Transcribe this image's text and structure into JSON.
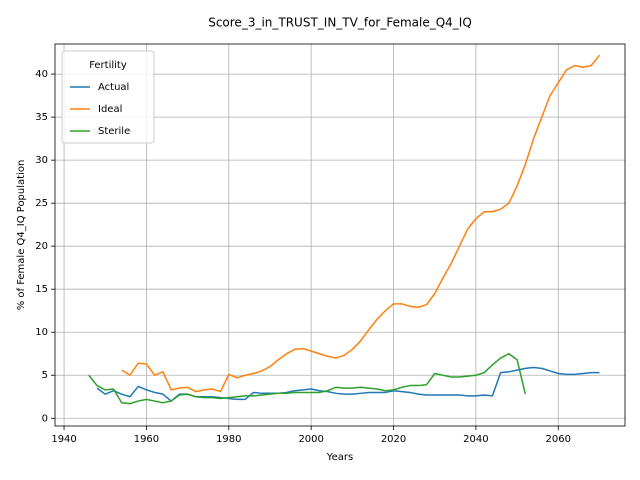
{
  "chart_data": {
    "type": "line",
    "title": "Score_3_in_TRUST_IN_TV_for_Female_Q4_IQ",
    "x_label": "Years",
    "y_label": "% of Female Q4_IQ Population",
    "legend_title": "Fertility",
    "legend": "upper left",
    "grid": true,
    "xlim": [
      1937.8,
      2076.2
    ],
    "ylim": [
      -0.9,
      43.5
    ],
    "xticks": [
      1940,
      1960,
      1980,
      2000,
      2020,
      2040,
      2060
    ],
    "yticks": [
      0,
      5,
      10,
      15,
      20,
      25,
      30,
      35,
      40
    ],
    "x": [
      1946,
      1948,
      1950,
      1952,
      1954,
      1956,
      1958,
      1960,
      1962,
      1964,
      1966,
      1968,
      1970,
      1972,
      1974,
      1976,
      1978,
      1980,
      1982,
      1984,
      1986,
      1988,
      1990,
      1992,
      1994,
      1996,
      1998,
      2000,
      2002,
      2004,
      2006,
      2008,
      2010,
      2012,
      2014,
      2016,
      2018,
      2020,
      2022,
      2024,
      2026,
      2028,
      2030,
      2032,
      2034,
      2036,
      2038,
      2040,
      2042,
      2044,
      2046,
      2048,
      2050,
      2052,
      2054,
      2056,
      2058,
      2060,
      2062,
      2064,
      2066,
      2068,
      2070
    ],
    "series": [
      {
        "name": "Actual",
        "color": "#1f77b4",
        "values": [
          null,
          3.5,
          2.8,
          3.2,
          2.8,
          2.5,
          3.7,
          3.3,
          3.0,
          2.8,
          2.0,
          2.8,
          2.8,
          2.5,
          2.5,
          2.5,
          2.4,
          2.3,
          2.2,
          2.2,
          3.0,
          2.9,
          2.9,
          2.9,
          3.0,
          3.2,
          3.3,
          3.4,
          3.2,
          3.1,
          2.9,
          2.8,
          2.8,
          2.9,
          3.0,
          3.0,
          3.0,
          3.2,
          3.1,
          3.0,
          2.8,
          2.7,
          2.7,
          2.7,
          2.7,
          2.7,
          2.6,
          2.6,
          2.7,
          2.6,
          5.3,
          5.4,
          5.6,
          5.8,
          5.9,
          5.8,
          5.5,
          5.2,
          5.1,
          5.1,
          5.2,
          5.3,
          5.3
        ]
      },
      {
        "name": "Ideal",
        "color": "#ff7f0e",
        "values": [
          null,
          null,
          null,
          null,
          5.6,
          5.0,
          6.4,
          6.3,
          5.0,
          5.4,
          3.3,
          3.5,
          3.6,
          3.1,
          3.3,
          3.4,
          3.1,
          5.1,
          4.7,
          5.0,
          5.2,
          5.5,
          6.0,
          6.8,
          7.5,
          8.0,
          8.1,
          7.8,
          7.5,
          7.2,
          7.0,
          7.3,
          8.0,
          9.0,
          10.3,
          11.5,
          12.5,
          13.3,
          13.3,
          13.0,
          12.9,
          13.2,
          14.5,
          16.3,
          18.0,
          20.0,
          22.0,
          23.2,
          24.0,
          24.0,
          24.3,
          25.0,
          27.0,
          29.5,
          32.5,
          35.0,
          37.5,
          39.0,
          40.5,
          41.0,
          40.8,
          41.0,
          42.2
        ]
      },
      {
        "name": "Sterile",
        "color": "#2ca02c",
        "values": [
          5.0,
          3.8,
          3.3,
          3.4,
          1.8,
          1.7,
          2.0,
          2.2,
          2.0,
          1.8,
          2.0,
          2.7,
          2.8,
          2.5,
          2.4,
          2.4,
          2.3,
          2.4,
          2.5,
          2.6,
          2.6,
          2.7,
          2.8,
          2.9,
          2.9,
          3.0,
          3.0,
          3.0,
          3.0,
          3.2,
          3.6,
          3.5,
          3.5,
          3.6,
          3.5,
          3.4,
          3.2,
          3.3,
          3.6,
          3.8,
          3.8,
          3.9,
          5.2,
          5.0,
          4.8,
          4.8,
          4.9,
          5.0,
          5.3,
          6.2,
          7.0,
          7.5,
          6.8,
          2.8,
          null,
          null,
          null,
          null,
          null,
          null,
          null,
          null,
          null
        ]
      }
    ]
  }
}
